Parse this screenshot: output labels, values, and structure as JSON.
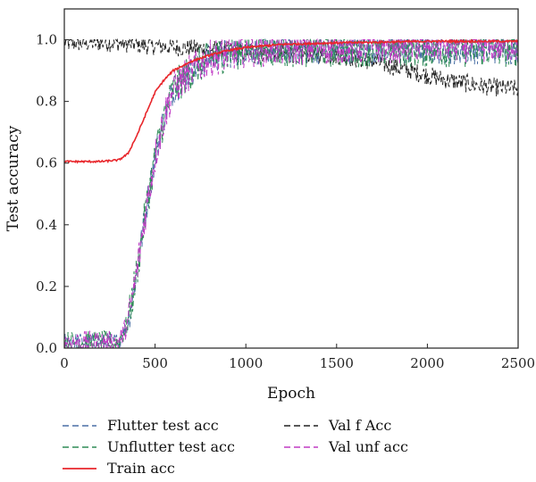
{
  "chart_data": {
    "type": "line",
    "xlabel": "Epoch",
    "ylabel": "Test accuracy",
    "xlim": [
      0,
      2500
    ],
    "ylim": [
      0,
      1.1
    ],
    "xticks": [
      0,
      500,
      1000,
      1500,
      2000,
      2500
    ],
    "yticks": [
      0.0,
      0.2,
      0.4,
      0.6,
      0.8,
      1.0
    ],
    "xtick_labels": [
      "0",
      "500",
      "1000",
      "1500",
      "2000",
      "2500"
    ],
    "ytick_labels": [
      "0.0",
      "0.2",
      "0.4",
      "0.6",
      "0.8",
      "1.0"
    ],
    "grid": false,
    "legend_position": "bottom",
    "series": [
      {
        "name": "Flutter test acc",
        "color": "#4a6fa5",
        "dashed": true,
        "noise": 0.05,
        "x": [
          0,
          300,
          350,
          400,
          450,
          500,
          550,
          600,
          700,
          800,
          1000,
          1200,
          1500,
          2000,
          2500
        ],
        "y": [
          0.02,
          0.02,
          0.08,
          0.25,
          0.45,
          0.62,
          0.75,
          0.84,
          0.9,
          0.94,
          0.97,
          0.97,
          0.97,
          0.97,
          0.97
        ]
      },
      {
        "name": "Unflutter test acc",
        "color": "#2e8b57",
        "dashed": true,
        "noise": 0.06,
        "x": [
          0,
          300,
          350,
          400,
          450,
          500,
          550,
          600,
          700,
          800,
          1000,
          1200,
          1500,
          2000,
          2500
        ],
        "y": [
          0.02,
          0.02,
          0.08,
          0.25,
          0.45,
          0.62,
          0.75,
          0.84,
          0.9,
          0.94,
          0.97,
          0.97,
          0.97,
          0.97,
          0.97
        ]
      },
      {
        "name": "Train acc",
        "color": "#e8262b",
        "dashed": false,
        "noise": 0.003,
        "x": [
          0,
          100,
          200,
          300,
          350,
          400,
          450,
          500,
          550,
          600,
          700,
          800,
          900,
          1000,
          1200,
          1500,
          2000,
          2500
        ],
        "y": [
          0.605,
          0.605,
          0.605,
          0.61,
          0.63,
          0.69,
          0.76,
          0.83,
          0.87,
          0.9,
          0.93,
          0.95,
          0.965,
          0.975,
          0.985,
          0.99,
          0.995,
          0.995
        ]
      },
      {
        "name": "Val f Acc",
        "color": "#222222",
        "dashed": true,
        "noise": 0.03,
        "x": [
          0,
          100,
          200,
          300,
          500,
          800,
          1000,
          1200,
          1500,
          1700,
          1900,
          2100,
          2300,
          2500
        ],
        "y": [
          0.99,
          0.99,
          0.99,
          0.99,
          0.98,
          0.97,
          0.96,
          0.955,
          0.95,
          0.93,
          0.9,
          0.87,
          0.85,
          0.84
        ]
      },
      {
        "name": "Val unf acc",
        "color": "#c03bc4",
        "dashed": true,
        "noise": 0.06,
        "x": [
          0,
          300,
          350,
          400,
          450,
          500,
          550,
          600,
          700,
          800,
          1000,
          1200,
          1500,
          2000,
          2500
        ],
        "y": [
          0.02,
          0.02,
          0.08,
          0.25,
          0.45,
          0.62,
          0.75,
          0.84,
          0.9,
          0.94,
          0.97,
          0.975,
          0.98,
          0.985,
          0.985
        ]
      }
    ]
  }
}
